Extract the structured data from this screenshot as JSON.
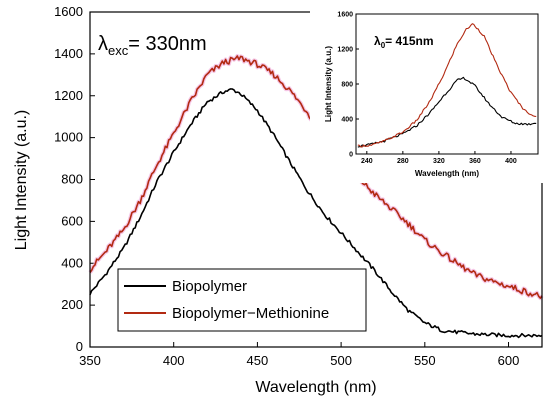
{
  "chart_data": [
    {
      "type": "line",
      "xlabel": "Wavelength (nm)",
      "ylabel": "Light Intensity (a.u.)",
      "xlim": [
        350,
        620
      ],
      "ylim": [
        0,
        1600
      ],
      "x_ticks": [
        350,
        400,
        450,
        500,
        550,
        600
      ],
      "y_ticks": [
        0,
        200,
        400,
        600,
        800,
        1000,
        1200,
        1400,
        1600
      ],
      "annotation": {
        "symbol": "λ",
        "subscript": "exc",
        "text": "= 330nm"
      },
      "legend_position": "bottom-left",
      "series": [
        {
          "name": "Biopolymer",
          "color": "#000000",
          "x": [
            350,
            360,
            370,
            380,
            390,
            400,
            410,
            420,
            430,
            435,
            440,
            450,
            460,
            470,
            480,
            490,
            500,
            510,
            520,
            530,
            540,
            550,
            560,
            570,
            580,
            590,
            600,
            610,
            620
          ],
          "y": [
            255,
            355,
            470,
            620,
            790,
            930,
            1060,
            1170,
            1220,
            1230,
            1210,
            1130,
            1010,
            875,
            745,
            635,
            545,
            455,
            365,
            265,
            175,
            115,
            80,
            70,
            62,
            58,
            55,
            55,
            55
          ]
        },
        {
          "name": "Biopolymer−Methionine",
          "color": "#b22a12",
          "x": [
            350,
            360,
            370,
            380,
            390,
            400,
            410,
            420,
            430,
            440,
            450,
            460,
            470,
            480,
            490,
            500,
            510,
            520,
            530,
            540,
            550,
            560,
            570,
            580,
            590,
            600,
            610,
            620
          ],
          "y": [
            370,
            460,
            560,
            700,
            870,
            1020,
            1170,
            1300,
            1360,
            1380,
            1350,
            1300,
            1220,
            1120,
            1010,
            900,
            810,
            730,
            660,
            590,
            510,
            450,
            395,
            345,
            315,
            290,
            265,
            240
          ]
        }
      ]
    },
    {
      "type": "line",
      "xlabel": "Wavelength (nm)",
      "ylabel": "Light Intensity (a.u.)",
      "xlim": [
        228,
        430
      ],
      "ylim": [
        0,
        1600
      ],
      "x_ticks": [
        240,
        280,
        320,
        360,
        400
      ],
      "y_ticks": [
        0,
        400,
        800,
        1200,
        1600
      ],
      "annotation": {
        "symbol": "λ",
        "subscript": "0",
        "text": "= 415nm"
      },
      "series": [
        {
          "color": "#000000",
          "x": [
            230,
            245,
            260,
            280,
            295,
            310,
            325,
            340,
            348,
            360,
            375,
            390,
            405,
            420,
            428
          ],
          "y": [
            90,
            110,
            150,
            230,
            320,
            470,
            660,
            840,
            870,
            780,
            580,
            420,
            350,
            340,
            360
          ]
        },
        {
          "color": "#b22a12",
          "x": [
            230,
            245,
            260,
            280,
            295,
            310,
            325,
            340,
            350,
            358,
            370,
            385,
            400,
            415,
            428
          ],
          "y": [
            90,
            100,
            150,
            250,
            380,
            600,
            900,
            1250,
            1420,
            1490,
            1350,
            1000,
            700,
            500,
            420
          ]
        }
      ]
    }
  ]
}
